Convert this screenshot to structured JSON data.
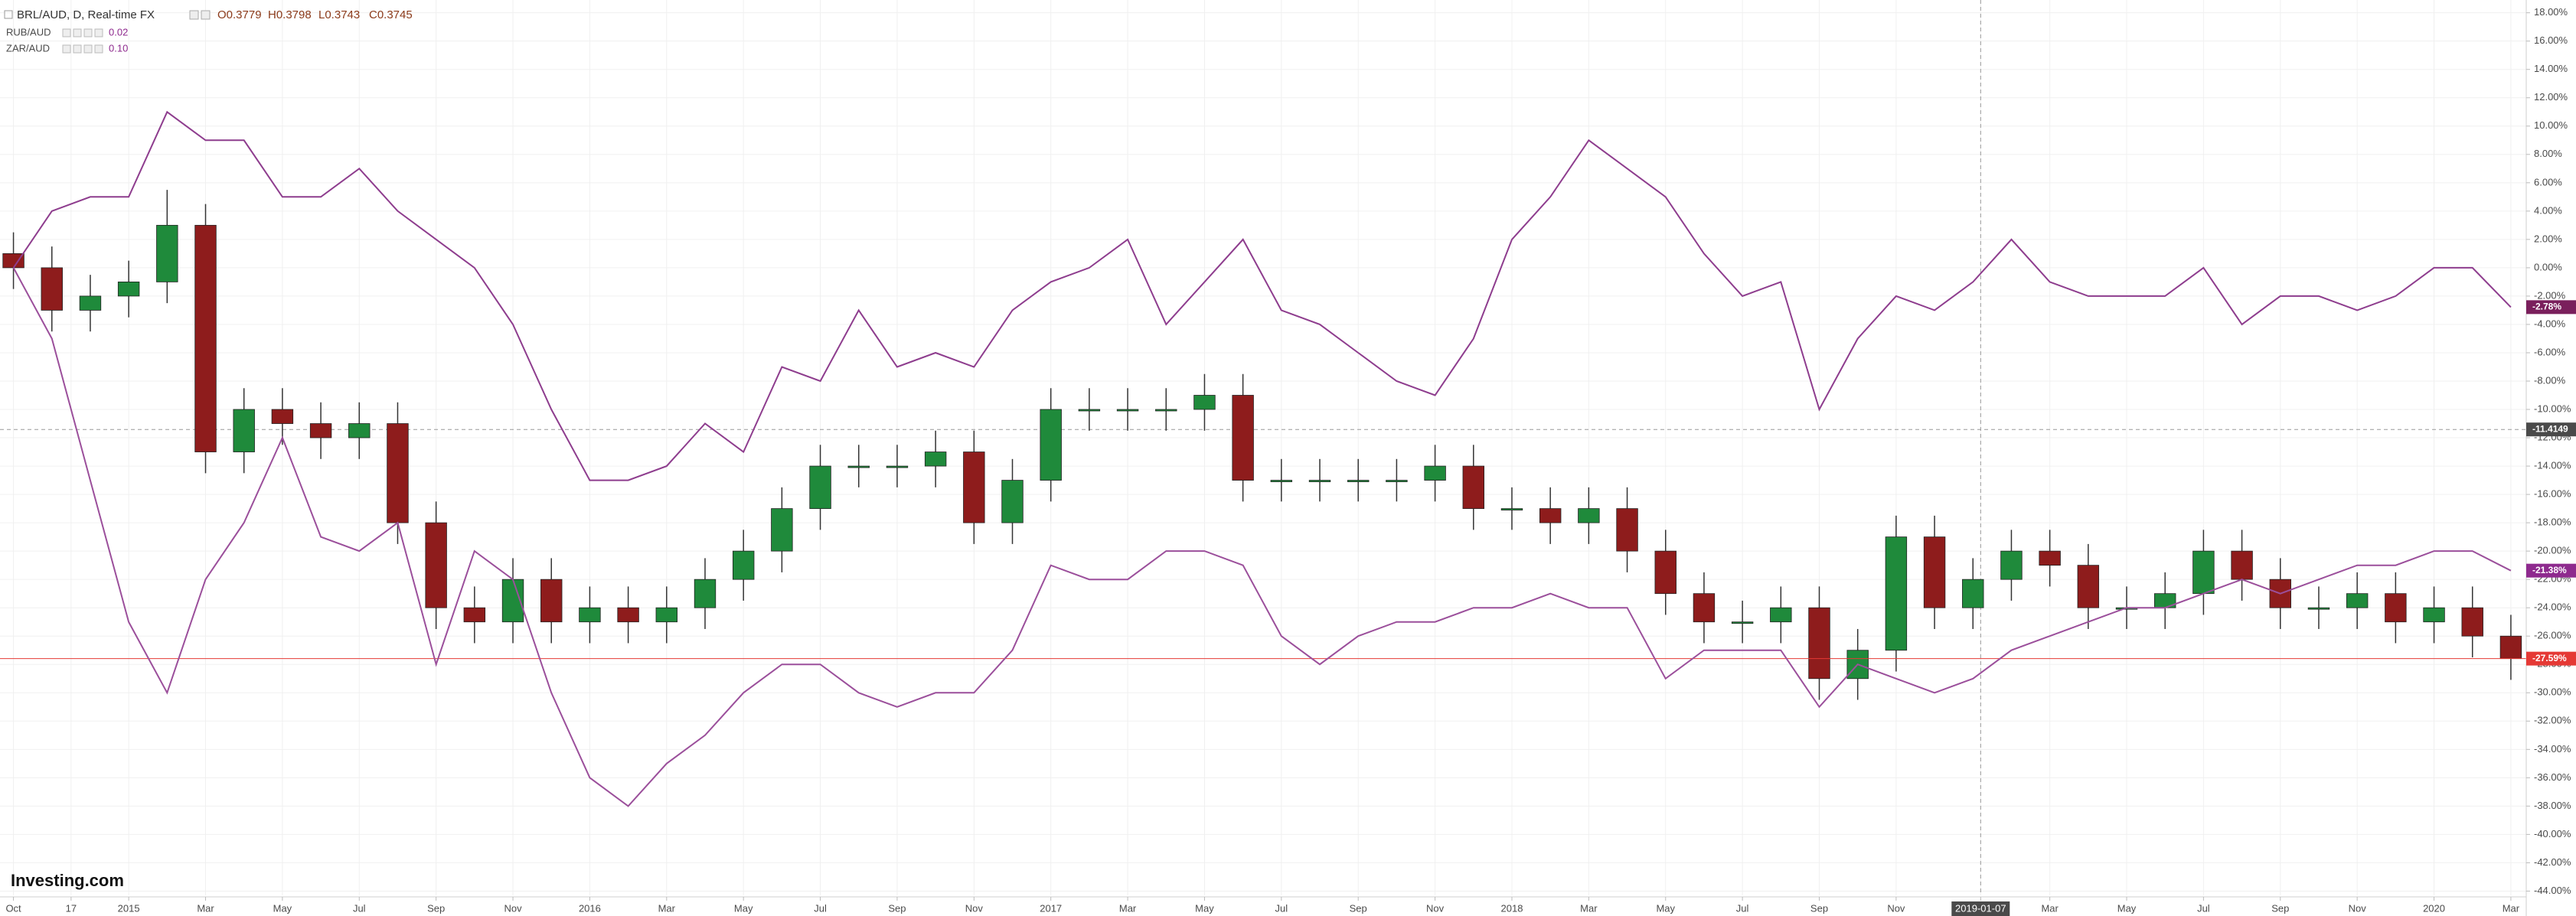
{
  "chart_data": {
    "type": "candlestick",
    "header": {
      "symbol": "BRL/AUD, D, Real-time FX",
      "ohlc": [
        "O0.3779",
        "H0.3798",
        "L0.3743",
        "C0.3745"
      ]
    },
    "logo": "Investing.com",
    "x": [
      0,
      1,
      2,
      3,
      4,
      5,
      6,
      7,
      8,
      9,
      10,
      11,
      12,
      13,
      14,
      15,
      16,
      17,
      18,
      19,
      20,
      21,
      22,
      23,
      24,
      25,
      26,
      27,
      28,
      29,
      30,
      31,
      32,
      33,
      34,
      35,
      36,
      37,
      38,
      39,
      40,
      41,
      42,
      43,
      44,
      45,
      46,
      47,
      48,
      49,
      50,
      51,
      52,
      53,
      54,
      55,
      56,
      57,
      58,
      59,
      60,
      61,
      62,
      63,
      64,
      65
    ],
    "xlim": [
      -0.35,
      65.4
    ],
    "xticks": [
      {
        "value": 0,
        "label": "Oct"
      },
      {
        "value": 1.5,
        "label": "17"
      },
      {
        "value": 3,
        "label": "2015"
      },
      {
        "value": 5,
        "label": "Mar"
      },
      {
        "value": 7,
        "label": "May"
      },
      {
        "value": 9,
        "label": "Jul"
      },
      {
        "value": 11,
        "label": "Sep"
      },
      {
        "value": 13,
        "label": "Nov"
      },
      {
        "value": 15,
        "label": "2016"
      },
      {
        "value": 17,
        "label": "Mar"
      },
      {
        "value": 19,
        "label": "May"
      },
      {
        "value": 21,
        "label": "Jul"
      },
      {
        "value": 23,
        "label": "Sep"
      },
      {
        "value": 25,
        "label": "Nov"
      },
      {
        "value": 27,
        "label": "2017"
      },
      {
        "value": 29,
        "label": "Mar"
      },
      {
        "value": 31,
        "label": "May"
      },
      {
        "value": 33,
        "label": "Jul"
      },
      {
        "value": 35,
        "label": "Sep"
      },
      {
        "value": 37,
        "label": "Nov"
      },
      {
        "value": 39,
        "label": "2018"
      },
      {
        "value": 41,
        "label": "Mar"
      },
      {
        "value": 43,
        "label": "May"
      },
      {
        "value": 45,
        "label": "Jul"
      },
      {
        "value": 47,
        "label": "Sep"
      },
      {
        "value": 49,
        "label": "Nov"
      },
      {
        "value": 51.2,
        "label": "2019-01-07"
      },
      {
        "value": 53,
        "label": "Mar"
      },
      {
        "value": 55,
        "label": "May"
      },
      {
        "value": 57,
        "label": "Jul"
      },
      {
        "value": 59,
        "label": "Sep"
      },
      {
        "value": 61,
        "label": "Nov"
      },
      {
        "value": 63,
        "label": "2020"
      },
      {
        "value": 65,
        "label": "Mar"
      }
    ],
    "ylim": [
      -44.3,
      18.9
    ],
    "yticks": [
      {
        "value": 18,
        "label": "18.00%"
      },
      {
        "value": 16,
        "label": "16.00%"
      },
      {
        "value": 14,
        "label": "14.00%"
      },
      {
        "value": 12,
        "label": "12.00%"
      },
      {
        "value": 10,
        "label": "10.00%"
      },
      {
        "value": 8,
        "label": "8.00%"
      },
      {
        "value": 6,
        "label": "6.00%"
      },
      {
        "value": 4,
        "label": "4.00%"
      },
      {
        "value": 2,
        "label": "2.00%"
      },
      {
        "value": 0,
        "label": "0.00%"
      },
      {
        "value": -2,
        "label": "-2.00%"
      },
      {
        "value": -4,
        "label": "-4.00%"
      },
      {
        "value": -6,
        "label": "-6.00%"
      },
      {
        "value": -8,
        "label": "-8.00%"
      },
      {
        "value": -10,
        "label": "-10.00%"
      },
      {
        "value": -12,
        "label": "-12.00%"
      },
      {
        "value": -14,
        "label": "-14.00%"
      },
      {
        "value": -16,
        "label": "-16.00%"
      },
      {
        "value": -18,
        "label": "-18.00%"
      },
      {
        "value": -20,
        "label": "-20.00%"
      },
      {
        "value": -22,
        "label": "-22.00%"
      },
      {
        "value": -24,
        "label": "-24.00%"
      },
      {
        "value": -26,
        "label": "-26.00%"
      },
      {
        "value": -28,
        "label": "-28.00%"
      },
      {
        "value": -30,
        "label": "-30.00%"
      },
      {
        "value": -32,
        "label": "-32.00%"
      },
      {
        "value": -34,
        "label": "-34.00%"
      },
      {
        "value": -36,
        "label": "-36.00%"
      },
      {
        "value": -38,
        "label": "-38.00%"
      },
      {
        "value": -40,
        "label": "-40.00%"
      },
      {
        "value": -42,
        "label": "-42.00%"
      },
      {
        "value": -44,
        "label": "-44.00%"
      }
    ],
    "grid": true,
    "crosshair": {
      "x": 51.2,
      "y": -11.4149
    },
    "series": [
      {
        "name": "BRL/AUD",
        "type": "candlestick",
        "up_color": "#1f8a3b",
        "down_color": "#8e1c1c",
        "price_line_color": "#e53935",
        "last_label": "-27.59%",
        "open": [
          1,
          0,
          -3,
          -2,
          -1,
          3,
          -13,
          -10,
          -11,
          -12,
          -11,
          -18,
          -24,
          -25,
          -22,
          -25,
          -24,
          -25,
          -24,
          -22,
          -20,
          -17,
          -14,
          -14,
          -14,
          -13,
          -18,
          -15,
          -10,
          -10,
          -10,
          -10,
          -9,
          -15,
          -15,
          -15,
          -15,
          -15,
          -14,
          -17,
          -17,
          -18,
          -17,
          -20,
          -23,
          -25,
          -25,
          -24,
          -29,
          -27,
          -19,
          -24,
          -22,
          -20,
          -21,
          -24,
          -24,
          -23,
          -20,
          -22,
          -24,
          -24,
          -23,
          -25,
          -24,
          -26
        ],
        "high": [
          2.5,
          1.5,
          -0.5,
          0.5,
          5.5,
          4.5,
          -8.5,
          -8.5,
          -9.5,
          -9.5,
          -9.5,
          -16.5,
          -22.5,
          -20.5,
          -20.5,
          -22.5,
          -22.5,
          -22.5,
          -20.5,
          -18.5,
          -15.5,
          -12.5,
          -12.5,
          -12.5,
          -11.5,
          -11.5,
          -13.5,
          -8.5,
          -8.5,
          -8.5,
          -8.5,
          -7.5,
          -7.5,
          -13.5,
          -13.5,
          -13.5,
          -13.5,
          -12.5,
          -12.5,
          -15.5,
          -15.5,
          -15.5,
          -15.5,
          -18.5,
          -21.5,
          -23.5,
          -22.5,
          -22.5,
          -25.5,
          -17.5,
          -17.5,
          -20.5,
          -18.5,
          -18.5,
          -19.5,
          -22.5,
          -21.5,
          -18.5,
          -18.5,
          -20.5,
          -22.5,
          -21.5,
          -21.5,
          -22.5,
          -22.5,
          -24.5
        ],
        "low": [
          -1.5,
          -4.5,
          -4.5,
          -3.5,
          -2.5,
          -14.5,
          -14.5,
          -12.5,
          -13.5,
          -13.5,
          -19.5,
          -25.5,
          -26.5,
          -26.5,
          -26.5,
          -26.5,
          -26.5,
          -26.5,
          -25.5,
          -23.5,
          -21.5,
          -18.5,
          -15.5,
          -15.5,
          -15.5,
          -19.5,
          -19.5,
          -16.5,
          -11.5,
          -11.5,
          -11.5,
          -11.5,
          -16.5,
          -16.5,
          -16.5,
          -16.5,
          -16.5,
          -16.5,
          -18.5,
          -18.5,
          -19.5,
          -19.5,
          -21.5,
          -24.5,
          -26.5,
          -26.5,
          -26.5,
          -30.5,
          -30.5,
          -28.5,
          -25.5,
          -25.5,
          -23.5,
          -22.5,
          -25.5,
          -25.5,
          -25.5,
          -24.5,
          -23.5,
          -25.5,
          -25.5,
          -25.5,
          -26.5,
          -26.5,
          -27.5,
          -29.09
        ],
        "close": [
          0,
          -3,
          -2,
          -1,
          3,
          -13,
          -10,
          -11,
          -12,
          -11,
          -18,
          -24,
          -25,
          -22,
          -25,
          -24,
          -25,
          -24,
          -22,
          -20,
          -17,
          -14,
          -14,
          -14,
          -13,
          -18,
          -15,
          -10,
          -10,
          -10,
          -10,
          -9,
          -15,
          -15,
          -15,
          -15,
          -15,
          -14,
          -17,
          -17,
          -18,
          -17,
          -20,
          -23,
          -25,
          -25,
          -24,
          -29,
          -27,
          -19,
          -24,
          -22,
          -20,
          -21,
          -24,
          -24,
          -23,
          -20,
          -22,
          -24,
          -24,
          -23,
          -25,
          -24,
          -26,
          -27.59
        ]
      },
      {
        "name": "RUB/AUD",
        "type": "line",
        "color": "#8e3d8e",
        "tag_color": "#7a1f5c",
        "legend_value": "0.02",
        "last_label": "-2.78%",
        "values": [
          0,
          4,
          5,
          5,
          11,
          9,
          9,
          5,
          5,
          7,
          4,
          2,
          0,
          -4,
          -10,
          -15,
          -15,
          -14,
          -11,
          -13,
          -7,
          -8,
          -3,
          -7,
          -6,
          -7,
          -3,
          -1,
          0,
          2,
          -4,
          -1,
          2,
          -3,
          -4,
          -6,
          -8,
          -9,
          -5,
          2,
          5,
          9,
          7,
          5,
          1,
          -2,
          -1,
          -10,
          -5,
          -2,
          -3,
          -1,
          2,
          -1,
          -2,
          -2,
          -2,
          0,
          -4,
          -2,
          -2,
          -3,
          -2,
          0,
          0,
          -2.78
        ]
      },
      {
        "name": "ZAR/AUD",
        "type": "line",
        "color": "#9b4f9b",
        "tag_color": "#8e2a8e",
        "legend_value": "0.10",
        "last_label": "-21.38%",
        "values": [
          0,
          -5,
          -15,
          -25,
          -30,
          -22,
          -18,
          -12,
          -19,
          -20,
          -18,
          -28,
          -20,
          -22,
          -30,
          -36,
          -38,
          -35,
          -33,
          -30,
          -28,
          -28,
          -30,
          -31,
          -30,
          -30,
          -27,
          -21,
          -22,
          -22,
          -20,
          -20,
          -21,
          -26,
          -28,
          -26,
          -25,
          -25,
          -24,
          -24,
          -23,
          -24,
          -24,
          -29,
          -27,
          -27,
          -27,
          -31,
          -28,
          -29,
          -30,
          -29,
          -27,
          -26,
          -25,
          -24,
          -24,
          -23,
          -22,
          -23,
          -22,
          -21,
          -21,
          -20,
          -20,
          -21.38
        ]
      }
    ]
  }
}
